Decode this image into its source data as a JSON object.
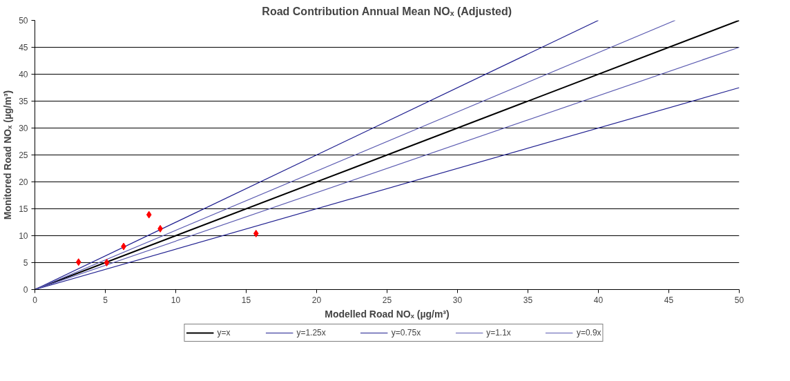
{
  "chart_data": {
    "type": "scatter",
    "title": "Road Contribution Annual Mean NOₓ (Adjusted)",
    "xlabel": "Modelled Road NOₓ (µg/m³)",
    "ylabel": "Monitored Road NOₓ (µg/m³)",
    "x": [
      3.1,
      5.1,
      6.3,
      8.1,
      8.9,
      15.7
    ],
    "values": [
      5.1,
      5.0,
      8.0,
      13.9,
      11.3,
      10.4
    ],
    "color": "#ff0000",
    "marker": "diamond",
    "series": [
      {
        "type": "line",
        "name": "y=x",
        "color": "#000000",
        "marker": "none",
        "x": [
          0,
          50
        ],
        "values": [
          0,
          50
        ]
      },
      {
        "type": "line",
        "name": "y=1.25x",
        "color": "#1f1f8f",
        "marker": "none",
        "x": [
          0,
          40
        ],
        "values": [
          0,
          50
        ]
      },
      {
        "type": "line",
        "name": "y=0.75x",
        "color": "#1f1f8f",
        "marker": "none",
        "x": [
          0,
          50
        ],
        "values": [
          0,
          37.5
        ]
      },
      {
        "type": "line",
        "name": "y=1.1x",
        "color": "#5a5ab0",
        "marker": "none",
        "x": [
          0,
          45.45
        ],
        "values": [
          0,
          50
        ]
      },
      {
        "type": "line",
        "name": "y=0.9x",
        "color": "#5a5ab0",
        "marker": "none",
        "x": [
          0,
          50
        ],
        "values": [
          0,
          45
        ]
      }
    ],
    "xlim": [
      0,
      50
    ],
    "ylim": [
      0,
      50
    ],
    "xticks": [
      0,
      5,
      10,
      15,
      20,
      25,
      30,
      35,
      40,
      45,
      50
    ],
    "yticks": [
      0,
      5,
      10,
      15,
      20,
      25,
      30,
      35,
      40,
      45,
      50
    ],
    "grid": "y",
    "legend": "bottom",
    "line_style": "solid"
  }
}
